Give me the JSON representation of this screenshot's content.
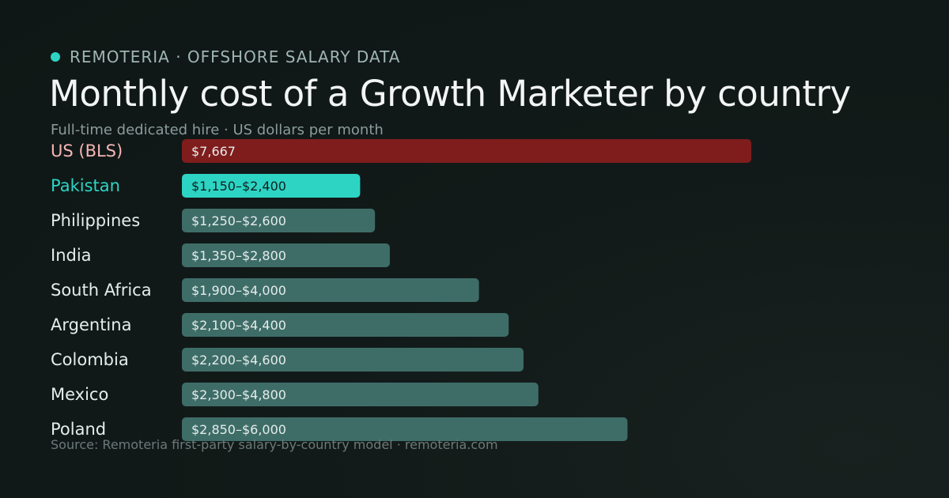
{
  "header": {
    "brand": "REMOTERIA · OFFSHORE SALARY DATA",
    "title": "Monthly cost of a Growth Marketer by country",
    "subtitle": "Full-time dedicated hire · US dollars per month"
  },
  "footer": {
    "source": "Source: Remoteria first-party salary-by-country model · remoteria.com"
  },
  "colors": {
    "brand_accent": "#2dd4c4",
    "us_bar": "#7f1d1d",
    "us_label": "#f5b5b5",
    "highlight_bar": "#2dd4c4",
    "highlight_label": "#2dd4c4",
    "default_bar": "#3e6d68",
    "default_label": "#e6ecea",
    "bar_text_light": "#e6ecea",
    "bar_text_dark": "#0f1f1d"
  },
  "chart_data": {
    "type": "bar",
    "orientation": "horizontal",
    "title": "Monthly cost of a Growth Marketer by country",
    "subtitle": "Full-time dedicated hire · US dollars per month",
    "xlim": [
      0,
      7667
    ],
    "grid": false,
    "categories": [
      "US (BLS)",
      "Pakistan",
      "Philippines",
      "India",
      "South Africa",
      "Argentina",
      "Colombia",
      "Mexico",
      "Poland"
    ],
    "values": [
      7667,
      2400,
      2600,
      2800,
      4000,
      4400,
      4600,
      4800,
      6000
    ],
    "ranges": [
      {
        "low": null,
        "high": 7667
      },
      {
        "low": 1150,
        "high": 2400
      },
      {
        "low": 1250,
        "high": 2600
      },
      {
        "low": 1350,
        "high": 2800
      },
      {
        "low": 1900,
        "high": 4000
      },
      {
        "low": 2100,
        "high": 4400
      },
      {
        "low": 2200,
        "high": 4600
      },
      {
        "low": 2300,
        "high": 4800
      },
      {
        "low": 2850,
        "high": 6000
      }
    ],
    "value_labels": [
      "$7,667",
      "$1,150–$2,400",
      "$1,250–$2,600",
      "$1,350–$2,800",
      "$1,900–$4,000",
      "$2,100–$4,400",
      "$2,200–$4,600",
      "$2,300–$4,800",
      "$2,850–$6,000"
    ],
    "highlight": [
      "us",
      "highlight",
      "default",
      "default",
      "default",
      "default",
      "default",
      "default",
      "default"
    ]
  }
}
